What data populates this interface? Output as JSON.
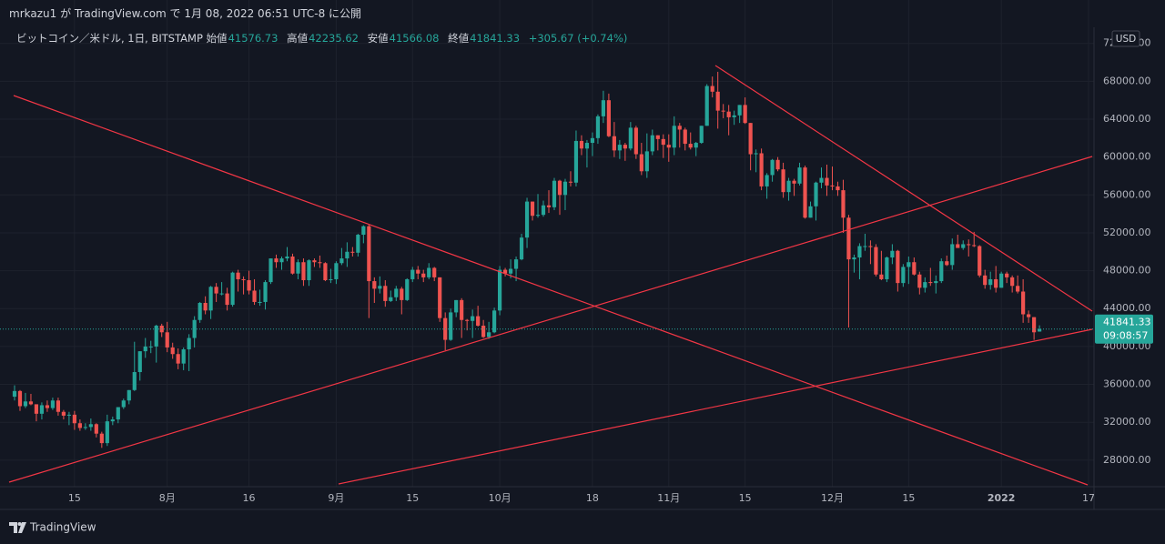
{
  "header": "mrkazu1 が TradingView.com で 1月 08, 2022 06:51 UTC-8 に公開",
  "chart_data": {
    "type": "candlestick",
    "symbol": "ビットコイン／米ドル, 1日, BITSTAMP",
    "open_label": "始値",
    "high_label": "高値",
    "low_label": "安値",
    "close_label": "終値",
    "change": "+305.67 (+0.74%)",
    "countdown": "09:08:57",
    "currency": "USD",
    "brand": "TradingView",
    "up_color": "#26a69a",
    "down_color": "#ef5350",
    "grid": true,
    "ylim": [
      25200,
      73700
    ],
    "yticks": [
      {
        "value": 28000,
        "label": "28000.00"
      },
      {
        "value": 32000,
        "label": "32000.00"
      },
      {
        "value": 36000,
        "label": "36000.00"
      },
      {
        "value": 40000,
        "label": "40000.00"
      },
      {
        "value": 44000,
        "label": "44000.00"
      },
      {
        "value": 48000,
        "label": "48000.00"
      },
      {
        "value": 52000,
        "label": "52000.00"
      },
      {
        "value": 56000,
        "label": "56000.00"
      },
      {
        "value": 60000,
        "label": "60000.00"
      },
      {
        "value": 64000,
        "label": "64000.00"
      },
      {
        "value": 68000,
        "label": "68000.00"
      },
      {
        "value": 72000,
        "label": "72000.00"
      }
    ],
    "xlim": [
      "07-03",
      "01-18"
    ],
    "xticks": [
      {
        "value": "07-15",
        "label": "15"
      },
      {
        "value": "08-01",
        "label": "8月"
      },
      {
        "value": "08-16",
        "label": "16"
      },
      {
        "value": "09-01",
        "label": "9月"
      },
      {
        "value": "09-15",
        "label": "15"
      },
      {
        "value": "10-01",
        "label": "10月"
      },
      {
        "value": "10-18",
        "label": "18"
      },
      {
        "value": "11-01",
        "label": "11月"
      },
      {
        "value": "11-15",
        "label": "15"
      },
      {
        "value": "12-01",
        "label": "12月"
      },
      {
        "value": "12-15",
        "label": "15"
      },
      {
        "value": "01-01",
        "label": "2022"
      },
      {
        "value": "01-17",
        "label": "17"
      }
    ],
    "categories": [
      "07-04",
      "07-05",
      "07-06",
      "07-07",
      "07-08",
      "07-09",
      "07-10",
      "07-11",
      "07-12",
      "07-13",
      "07-14",
      "07-15",
      "07-16",
      "07-17",
      "07-18",
      "07-19",
      "07-20",
      "07-21",
      "07-22",
      "07-23",
      "07-24",
      "07-25",
      "07-26",
      "07-27",
      "07-28",
      "07-29",
      "07-30",
      "07-31",
      "08-01",
      "08-02",
      "08-03",
      "08-04",
      "08-05",
      "08-06",
      "08-07",
      "08-08",
      "08-09",
      "08-10",
      "08-11",
      "08-12",
      "08-13",
      "08-14",
      "08-15",
      "08-16",
      "08-17",
      "08-18",
      "08-19",
      "08-20",
      "08-21",
      "08-22",
      "08-23",
      "08-24",
      "08-25",
      "08-26",
      "08-27",
      "08-28",
      "08-29",
      "08-30",
      "08-31",
      "09-01",
      "09-02",
      "09-03",
      "09-04",
      "09-05",
      "09-06",
      "09-07",
      "09-08",
      "09-09",
      "09-10",
      "09-11",
      "09-12",
      "09-13",
      "09-14",
      "09-15",
      "09-16",
      "09-17",
      "09-18",
      "09-19",
      "09-20",
      "09-21",
      "09-22",
      "09-23",
      "09-24",
      "09-25",
      "09-26",
      "09-27",
      "09-28",
      "09-29",
      "09-30",
      "10-01",
      "10-02",
      "10-03",
      "10-04",
      "10-05",
      "10-06",
      "10-07",
      "10-08",
      "10-09",
      "10-10",
      "10-11",
      "10-12",
      "10-13",
      "10-14",
      "10-15",
      "10-16",
      "10-17",
      "10-18",
      "10-19",
      "10-20",
      "10-21",
      "10-22",
      "10-23",
      "10-24",
      "10-25",
      "10-26",
      "10-27",
      "10-28",
      "10-29",
      "10-30",
      "10-31",
      "11-01",
      "11-02",
      "11-03",
      "11-04",
      "11-05",
      "11-06",
      "11-07",
      "11-08",
      "11-09",
      "11-10",
      "11-11",
      "11-12",
      "11-13",
      "11-14",
      "11-15",
      "11-16",
      "11-17",
      "11-18",
      "11-19",
      "11-20",
      "11-21",
      "11-22",
      "11-23",
      "11-24",
      "11-25",
      "11-26",
      "11-27",
      "11-28",
      "11-29",
      "11-30",
      "12-01",
      "12-02",
      "12-03",
      "12-04",
      "12-05",
      "12-06",
      "12-07",
      "12-08",
      "12-09",
      "12-10",
      "12-11",
      "12-12",
      "12-13",
      "12-14",
      "12-15",
      "12-16",
      "12-17",
      "12-18",
      "12-19",
      "12-20",
      "12-21",
      "12-22",
      "12-23",
      "12-24",
      "12-25",
      "12-26",
      "12-27",
      "12-28",
      "12-29",
      "12-30",
      "12-31",
      "01-01",
      "01-02",
      "01-03",
      "01-04",
      "01-05",
      "01-06",
      "01-07",
      "01-08"
    ],
    "ohlc": [
      [
        34700,
        35900,
        34300,
        35300
      ],
      [
        35300,
        35400,
        33200,
        33700
      ],
      [
        33700,
        35100,
        33500,
        34200
      ],
      [
        34200,
        35000,
        33800,
        33900
      ],
      [
        33900,
        33900,
        32100,
        32900
      ],
      [
        32900,
        34100,
        32300,
        33800
      ],
      [
        33800,
        34300,
        33100,
        33500
      ],
      [
        33500,
        34600,
        33300,
        34300
      ],
      [
        34300,
        34600,
        32700,
        33100
      ],
      [
        33100,
        33300,
        32300,
        32700
      ],
      [
        32700,
        33100,
        31700,
        32800
      ],
      [
        32800,
        33200,
        31200,
        31900
      ],
      [
        31900,
        32300,
        31100,
        31400
      ],
      [
        31400,
        31900,
        31200,
        31500
      ],
      [
        31500,
        32400,
        31100,
        31800
      ],
      [
        31800,
        31900,
        30400,
        30800
      ],
      [
        30800,
        31000,
        29300,
        29800
      ],
      [
        29800,
        32800,
        29500,
        32100
      ],
      [
        32100,
        32600,
        31700,
        32300
      ],
      [
        32300,
        33600,
        31900,
        33600
      ],
      [
        33600,
        34500,
        33400,
        34300
      ],
      [
        34300,
        35400,
        33900,
        35400
      ],
      [
        35400,
        40500,
        35300,
        37300
      ],
      [
        37300,
        39500,
        36400,
        39500
      ],
      [
        39500,
        40900,
        38800,
        40000
      ],
      [
        40000,
        40600,
        39300,
        40000
      ],
      [
        40000,
        42300,
        38300,
        42200
      ],
      [
        42200,
        42400,
        41000,
        41500
      ],
      [
        41500,
        42600,
        39400,
        39900
      ],
      [
        39900,
        40400,
        38700,
        39200
      ],
      [
        39200,
        39800,
        37600,
        38200
      ],
      [
        38200,
        39900,
        37500,
        39700
      ],
      [
        39700,
        41300,
        37400,
        40900
      ],
      [
        40900,
        43200,
        39900,
        42800
      ],
      [
        42800,
        44700,
        42500,
        44600
      ],
      [
        44600,
        45300,
        43400,
        43800
      ],
      [
        43800,
        46400,
        42900,
        46300
      ],
      [
        46300,
        46700,
        44700,
        45600
      ],
      [
        45600,
        46800,
        45400,
        45600
      ],
      [
        45600,
        46200,
        43800,
        44400
      ],
      [
        44400,
        47900,
        44200,
        47800
      ],
      [
        47800,
        48100,
        45800,
        47100
      ],
      [
        47100,
        47400,
        45500,
        47000
      ],
      [
        47000,
        48000,
        45500,
        45900
      ],
      [
        45900,
        47100,
        44400,
        44700
      ],
      [
        44700,
        46000,
        44300,
        44700
      ],
      [
        44700,
        47000,
        43900,
        46800
      ],
      [
        46800,
        49300,
        46600,
        49300
      ],
      [
        49300,
        49700,
        48300,
        48900
      ],
      [
        48900,
        49500,
        48100,
        49300
      ],
      [
        49300,
        50500,
        49000,
        49500
      ],
      [
        49500,
        49800,
        47600,
        47700
      ],
      [
        47700,
        49200,
        47100,
        48900
      ],
      [
        48900,
        49300,
        46400,
        47000
      ],
      [
        47000,
        49200,
        46400,
        49100
      ],
      [
        49100,
        49300,
        48400,
        48900
      ],
      [
        48900,
        49600,
        48300,
        48800
      ],
      [
        48800,
        48900,
        46900,
        47000
      ],
      [
        47000,
        48200,
        46700,
        47100
      ],
      [
        47100,
        49000,
        46600,
        48800
      ],
      [
        48800,
        50400,
        48600,
        49300
      ],
      [
        49300,
        51000,
        48400,
        50000
      ],
      [
        50000,
        50500,
        49500,
        49900
      ],
      [
        49900,
        51900,
        49500,
        51800
      ],
      [
        51800,
        52800,
        50900,
        52700
      ],
      [
        52700,
        52900,
        43000,
        46900
      ],
      [
        46900,
        47300,
        44600,
        46100
      ],
      [
        46100,
        47400,
        45600,
        46400
      ],
      [
        46400,
        47000,
        44200,
        44800
      ],
      [
        44800,
        45900,
        44700,
        45200
      ],
      [
        45200,
        46400,
        44800,
        46100
      ],
      [
        46100,
        46300,
        43400,
        44900
      ],
      [
        44900,
        47200,
        44800,
        47100
      ],
      [
        47100,
        48400,
        46800,
        48100
      ],
      [
        48100,
        48500,
        47100,
        47700
      ],
      [
        47700,
        48100,
        46800,
        47300
      ],
      [
        47300,
        48800,
        47100,
        48300
      ],
      [
        48300,
        48400,
        46900,
        47300
      ],
      [
        47300,
        47300,
        42600,
        43000
      ],
      [
        43000,
        43600,
        39600,
        40700
      ],
      [
        40700,
        44000,
        40600,
        43600
      ],
      [
        43600,
        44900,
        43100,
        44900
      ],
      [
        44900,
        45100,
        40900,
        42800
      ],
      [
        42800,
        42900,
        41700,
        42700
      ],
      [
        42700,
        43900,
        40900,
        43200
      ],
      [
        43200,
        44300,
        42100,
        42200
      ],
      [
        42200,
        42800,
        40900,
        41000
      ],
      [
        41000,
        42600,
        40800,
        41500
      ],
      [
        41500,
        44100,
        41400,
        43800
      ],
      [
        43800,
        48500,
        43300,
        48100
      ],
      [
        48100,
        48300,
        47400,
        47700
      ],
      [
        47700,
        49200,
        47200,
        48200
      ],
      [
        48200,
        49500,
        46900,
        49200
      ],
      [
        49200,
        51900,
        49100,
        51500
      ],
      [
        51500,
        55700,
        50400,
        55300
      ],
      [
        55300,
        55300,
        53300,
        53800
      ],
      [
        53800,
        56100,
        53600,
        53900
      ],
      [
        53900,
        55400,
        53700,
        54900
      ],
      [
        54900,
        56500,
        54100,
        54700
      ],
      [
        54700,
        57800,
        54400,
        57500
      ],
      [
        57500,
        57600,
        53900,
        56000
      ],
      [
        56000,
        57700,
        54400,
        57400
      ],
      [
        57400,
        58500,
        56900,
        57300
      ],
      [
        57300,
        62800,
        56900,
        61700
      ],
      [
        61700,
        62300,
        60200,
        60900
      ],
      [
        60900,
        61800,
        58900,
        61500
      ],
      [
        61500,
        62600,
        60100,
        62000
      ],
      [
        62000,
        64500,
        61400,
        64300
      ],
      [
        64300,
        67000,
        63600,
        66000
      ],
      [
        66000,
        66700,
        62100,
        62200
      ],
      [
        62200,
        63700,
        60000,
        60700
      ],
      [
        60700,
        61800,
        59800,
        61300
      ],
      [
        61300,
        61500,
        59600,
        60900
      ],
      [
        60900,
        63700,
        60700,
        63100
      ],
      [
        63100,
        63300,
        59800,
        60300
      ],
      [
        60300,
        61500,
        58100,
        58500
      ],
      [
        58500,
        62500,
        57800,
        60600
      ],
      [
        60600,
        62900,
        60200,
        62300
      ],
      [
        62300,
        62300,
        60700,
        61900
      ],
      [
        61900,
        62400,
        59900,
        61300
      ],
      [
        61300,
        62400,
        59500,
        61000
      ],
      [
        61000,
        64300,
        60200,
        63300
      ],
      [
        63300,
        63600,
        61000,
        62900
      ],
      [
        62900,
        63100,
        60700,
        61400
      ],
      [
        61400,
        62600,
        60800,
        61000
      ],
      [
        61000,
        61600,
        60100,
        61500
      ],
      [
        61500,
        63300,
        61400,
        63300
      ],
      [
        63300,
        67700,
        63300,
        67500
      ],
      [
        67500,
        68500,
        66300,
        66900
      ],
      [
        66900,
        69000,
        63000,
        64900
      ],
      [
        64900,
        65600,
        64100,
        64800
      ],
      [
        64800,
        65500,
        62300,
        64200
      ],
      [
        64200,
        64900,
        63400,
        64400
      ],
      [
        64400,
        65500,
        63600,
        65500
      ],
      [
        65500,
        66300,
        63500,
        63600
      ],
      [
        63600,
        63600,
        58600,
        60300
      ],
      [
        60300,
        60800,
        58400,
        60400
      ],
      [
        60400,
        60900,
        56500,
        56900
      ],
      [
        56900,
        58300,
        55600,
        58100
      ],
      [
        58100,
        59800,
        57400,
        59700
      ],
      [
        59700,
        60000,
        58500,
        58700
      ],
      [
        58700,
        59400,
        55700,
        56300
      ],
      [
        56300,
        57800,
        55400,
        57500
      ],
      [
        57500,
        57700,
        55900,
        57200
      ],
      [
        57200,
        59400,
        57000,
        58900
      ],
      [
        58900,
        59100,
        53500,
        53600
      ],
      [
        53600,
        55300,
        53600,
        54800
      ],
      [
        54800,
        57400,
        53300,
        57300
      ],
      [
        57300,
        58900,
        56700,
        57800
      ],
      [
        57800,
        59200,
        55900,
        57000
      ],
      [
        57000,
        59000,
        56500,
        56900
      ],
      [
        56900,
        57400,
        55900,
        56500
      ],
      [
        56500,
        57600,
        52000,
        53600
      ],
      [
        53600,
        53900,
        42000,
        49200
      ],
      [
        49200,
        49700,
        47800,
        49400
      ],
      [
        49400,
        50900,
        47100,
        50600
      ],
      [
        50600,
        51900,
        50100,
        50600
      ],
      [
        50600,
        51200,
        48700,
        50500
      ],
      [
        50500,
        50800,
        47400,
        47600
      ],
      [
        47600,
        50100,
        47000,
        47100
      ],
      [
        47100,
        49500,
        46800,
        49400
      ],
      [
        49400,
        50800,
        48700,
        50100
      ],
      [
        50100,
        50200,
        45800,
        46700
      ],
      [
        46700,
        48700,
        46300,
        48400
      ],
      [
        48400,
        49500,
        46600,
        48900
      ],
      [
        48900,
        49400,
        47500,
        47600
      ],
      [
        47600,
        47900,
        45500,
        46200
      ],
      [
        46200,
        47300,
        45700,
        46800
      ],
      [
        46800,
        48300,
        46400,
        46700
      ],
      [
        46700,
        47500,
        45600,
        46900
      ],
      [
        46900,
        49300,
        46700,
        49000
      ],
      [
        49000,
        49600,
        48500,
        48600
      ],
      [
        48600,
        51400,
        48100,
        50800
      ],
      [
        50800,
        51800,
        50500,
        50400
      ],
      [
        50400,
        51200,
        50200,
        50800
      ],
      [
        50800,
        51300,
        49500,
        50700
      ],
      [
        50700,
        52100,
        50500,
        50600
      ],
      [
        50600,
        50700,
        47300,
        47500
      ],
      [
        47500,
        48100,
        46100,
        46500
      ],
      [
        46500,
        47900,
        46000,
        47100
      ],
      [
        47100,
        48500,
        45700,
        46200
      ],
      [
        46200,
        47900,
        46200,
        47700
      ],
      [
        47700,
        47900,
        46700,
        47300
      ],
      [
        47300,
        47500,
        45700,
        46400
      ],
      [
        46400,
        47500,
        45600,
        45800
      ],
      [
        45800,
        47100,
        42500,
        43400
      ],
      [
        43400,
        43800,
        42500,
        43100
      ],
      [
        43100,
        43100,
        40700,
        41500
      ],
      [
        41576.73,
        42235.62,
        41566.08,
        41841.33
      ]
    ]
  }
}
